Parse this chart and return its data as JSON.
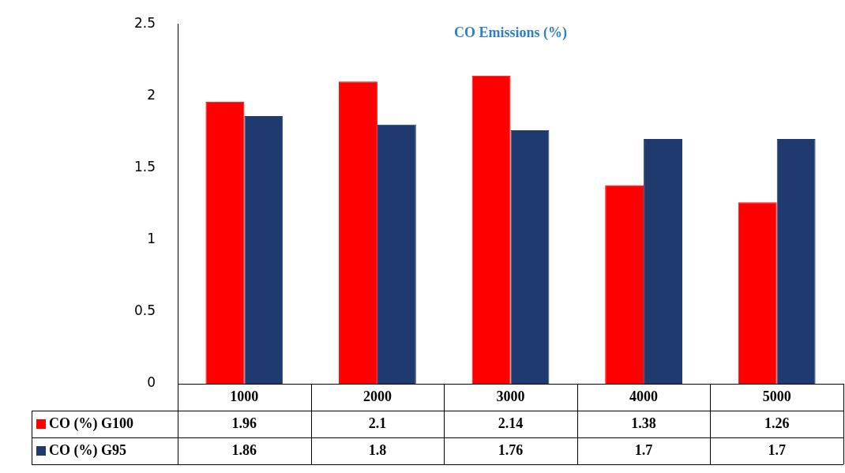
{
  "chart_data": {
    "type": "bar",
    "title": "CO Emissions (%)",
    "categories": [
      "1000",
      "2000",
      "3000",
      "4000",
      "5000"
    ],
    "series": [
      {
        "name": "CO (%) G100",
        "color": "#ff0000",
        "values": [
          1.96,
          2.1,
          2.14,
          1.38,
          1.26
        ]
      },
      {
        "name": "CO (%) G95",
        "color": "#1f3a6e",
        "values": [
          1.86,
          1.8,
          1.76,
          1.7,
          1.7
        ]
      }
    ],
    "ylim": [
      0,
      2.5
    ],
    "yticks": [
      0,
      0.5,
      1,
      1.5,
      2,
      2.5
    ],
    "grid": false,
    "legend": "bottom left",
    "data_labels": true
  }
}
